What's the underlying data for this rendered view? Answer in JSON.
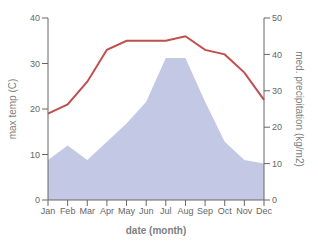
{
  "chart_data": {
    "type": "line",
    "xlabel": "date (month)",
    "ylabel": "max temp (C)",
    "y2label": "med. precipitation (kg/m2)",
    "categories": [
      "Jan",
      "Feb",
      "Mar",
      "Apr",
      "May",
      "Jun",
      "Jul",
      "Aug",
      "Sep",
      "Oct",
      "Nov",
      "Dec"
    ],
    "series": [
      {
        "type": "area",
        "axis": "y2",
        "color": "#b8c0e0",
        "values": [
          11,
          15,
          11,
          16,
          21,
          27,
          39,
          39,
          27,
          16,
          11,
          10
        ]
      },
      {
        "type": "line",
        "color": "#c0504d",
        "values": [
          19,
          21,
          26,
          33,
          35,
          35,
          35,
          36,
          33,
          32,
          28,
          22
        ]
      }
    ],
    "ylim": [
      0,
      40
    ],
    "yticks": [
      0,
      10,
      20,
      30,
      40
    ],
    "y2lim": [
      0,
      50
    ],
    "y2ticks": [
      0,
      10,
      20,
      30,
      40,
      50
    ],
    "grid": false
  }
}
